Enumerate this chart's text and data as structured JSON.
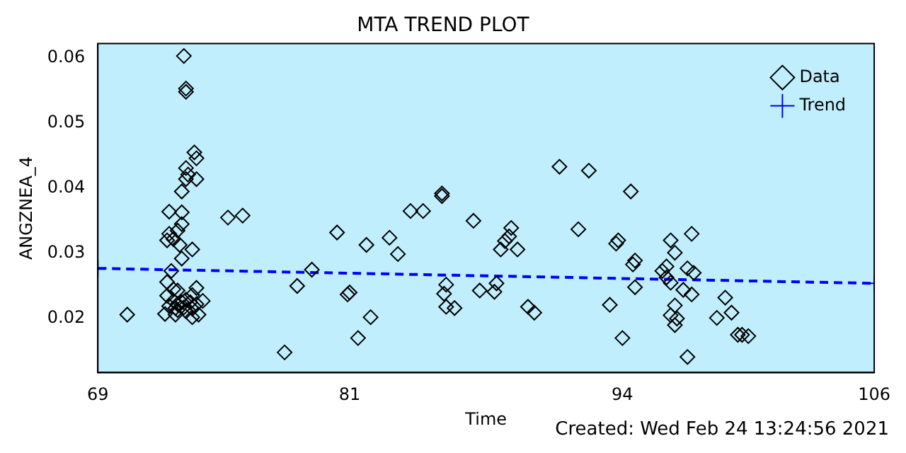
{
  "chart_data": {
    "type": "scatter",
    "title": "MTA TREND PLOT",
    "xlabel": "Time",
    "ylabel": "ANGZNEA_4",
    "annotations": [
      "Created: Wed Feb 24 13:24:56 2021"
    ],
    "xlim": [
      69,
      106
    ],
    "xticks": [
      69,
      81,
      94,
      106
    ],
    "ylim": [
      0.0117,
      0.0622
    ],
    "yticks": [
      0.02,
      0.03,
      0.04,
      0.05,
      0.06
    ],
    "grid": false,
    "legend": "top right",
    "series": [
      {
        "name": "Data",
        "marker": "diamond",
        "color": "#000000",
        "x": [
          70.4,
          73.1,
          73.2,
          73.2,
          73.6,
          73.7,
          73.2,
          73.3,
          73.2,
          73.7,
          73.0,
          72.4,
          73.0,
          73.0,
          72.8,
          72.4,
          72.3,
          72.6,
          72.9,
          73.5,
          73.0,
          72.5,
          72.3,
          72.6,
          72.8,
          73.7,
          73.5,
          72.3,
          72.6,
          72.8,
          73.0,
          73.2,
          73.4,
          73.7,
          74.0,
          72.4,
          72.7,
          73.1,
          73.5,
          72.2,
          72.7,
          73.5,
          73.8,
          72.8,
          73.2,
          75.2,
          75.9,
          77.9,
          78.5,
          79.2,
          80.4,
          80.9,
          81.0,
          81.4,
          81.8,
          82.0,
          82.9,
          83.3,
          83.9,
          84.5,
          85.4,
          85.4,
          85.6,
          85.5,
          85.6,
          86.0,
          86.9,
          87.2,
          87.9,
          88.0,
          88.2,
          88.4,
          88.6,
          88.7,
          89.0,
          89.5,
          89.8,
          91.0,
          92.4,
          91.9,
          93.4,
          93.7,
          93.8,
          94.0,
          94.4,
          94.6,
          94.5,
          94.6,
          96.3,
          96.5,
          96.1,
          95.9,
          96.1,
          96.3,
          96.9,
          97.3,
          97.1,
          97.4,
          97.3,
          96.5,
          96.3,
          96.6,
          96.5,
          97.1,
          98.5,
          98.9,
          99.2,
          99.5,
          99.7,
          100.0
        ],
        "values": [
          0.0206,
          0.0603,
          0.0553,
          0.0548,
          0.0455,
          0.0446,
          0.0431,
          0.0421,
          0.0414,
          0.0414,
          0.0395,
          0.0364,
          0.0363,
          0.0345,
          0.0335,
          0.033,
          0.032,
          0.0322,
          0.0313,
          0.0306,
          0.0292,
          0.0273,
          0.0256,
          0.0245,
          0.0243,
          0.0247,
          0.0236,
          0.0235,
          0.0227,
          0.0222,
          0.0225,
          0.0229,
          0.0225,
          0.0222,
          0.0227,
          0.0219,
          0.0216,
          0.0217,
          0.0215,
          0.0207,
          0.0206,
          0.0202,
          0.0206,
          0.0213,
          0.0211,
          0.0355,
          0.0358,
          0.0148,
          0.025,
          0.0275,
          0.0332,
          0.0237,
          0.024,
          0.017,
          0.0313,
          0.0202,
          0.0324,
          0.0299,
          0.0365,
          0.0365,
          0.0392,
          0.0388,
          0.0252,
          0.0238,
          0.0218,
          0.0216,
          0.035,
          0.0243,
          0.0241,
          0.0254,
          0.0306,
          0.0319,
          0.0326,
          0.0339,
          0.0306,
          0.0218,
          0.0209,
          0.0433,
          0.0427,
          0.0337,
          0.0221,
          0.0315,
          0.032,
          0.017,
          0.0395,
          0.0289,
          0.0283,
          0.0248,
          0.032,
          0.0301,
          0.028,
          0.0273,
          0.0263,
          0.0255,
          0.0244,
          0.0237,
          0.0277,
          0.027,
          0.033,
          0.022,
          0.0205,
          0.02,
          0.019,
          0.0141,
          0.0201,
          0.0232,
          0.0209,
          0.0175,
          0.0175,
          0.0173
        ]
      },
      {
        "name": "Trend",
        "type": "line",
        "marker": "cross",
        "line_style": "dashed",
        "color": "#0000ff",
        "x": [
          69,
          106
        ],
        "values": [
          0.0277,
          0.0254
        ]
      }
    ]
  }
}
